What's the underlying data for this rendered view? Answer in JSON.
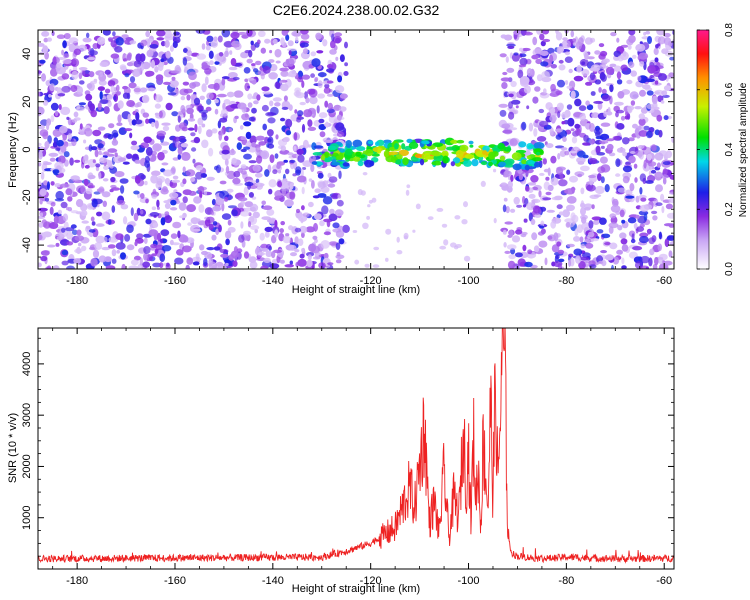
{
  "title": "C2E6.2024.238.00.02.G32",
  "chart_data": [
    {
      "type": "heatmap",
      "xlabel": "Height of straight line (km)",
      "ylabel": "Frequency (Hz)",
      "xlim": [
        -188,
        -58
      ],
      "ylim": [
        -50,
        50
      ],
      "xticks": [
        -180,
        -160,
        -140,
        -120,
        -100,
        -80,
        -60
      ],
      "yticks": [
        -40,
        -20,
        0,
        20,
        40
      ],
      "colorbar": {
        "label": "Normalized spectral amplitude",
        "range": [
          0.0,
          0.8
        ],
        "ticks": [
          0.0,
          0.2,
          0.4,
          0.6,
          0.8
        ]
      },
      "features": {
        "noise_regions_km": [
          [
            -188,
            -125
          ],
          [
            -93,
            -58
          ]
        ],
        "quiet_gap_km": [
          -125,
          -93
        ],
        "signal_band": {
          "x_range_km": [
            -132,
            -85
          ],
          "freq_center_hz": -3,
          "freq_halfwidth_hz": 5
        },
        "peak_amplitude": 0.8
      },
      "grid": false
    },
    {
      "type": "line",
      "xlabel": "Height of straight line (km)",
      "ylabel": "SNR (10 * v/v)",
      "xlim": [
        -188,
        -58
      ],
      "ylim": [
        0,
        4700
      ],
      "xticks": [
        -180,
        -160,
        -140,
        -120,
        -100,
        -80,
        -60
      ],
      "yticks": [
        1000,
        2000,
        3000,
        4000
      ],
      "color": "#ee2222",
      "baseline": 200,
      "x": [
        -188,
        -130,
        -125,
        -120,
        -115,
        -112,
        -111,
        -110,
        -109,
        -108,
        -107,
        -106,
        -105,
        -104,
        -103,
        -102,
        -101,
        -100.5,
        -100,
        -99.5,
        -99,
        -98.5,
        -98,
        -97.5,
        -97,
        -96,
        -95.5,
        -95,
        -94.5,
        -94,
        -93.5,
        -93,
        -92.5,
        -92,
        -91.5,
        -91,
        -90,
        -85,
        -80,
        -70,
        -58
      ],
      "y": [
        200,
        230,
        350,
        500,
        800,
        1600,
        1200,
        2000,
        2800,
        900,
        1300,
        700,
        1900,
        600,
        1400,
        1000,
        2650,
        1600,
        2350,
        900,
        2600,
        1400,
        2000,
        800,
        2500,
        1200,
        3300,
        1400,
        3700,
        1600,
        3000,
        4700,
        3600,
        800,
        400,
        300,
        250,
        200,
        230,
        200,
        210
      ],
      "grid": false
    }
  ]
}
